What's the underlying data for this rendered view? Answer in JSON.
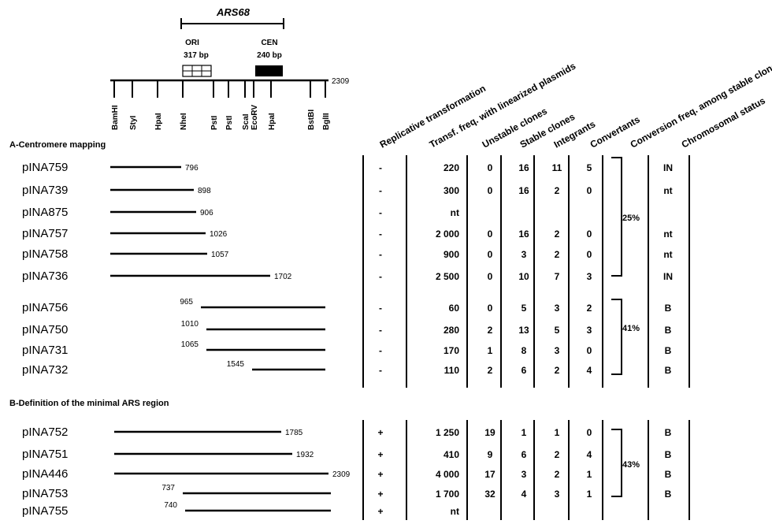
{
  "map": {
    "title": "ARS68",
    "ori_label": "ORI",
    "ori_size": "317  bp",
    "cen_label": "CEN",
    "cen_size": "240  bp",
    "end_coord": "2309",
    "sites": [
      "BamHI",
      "StyI",
      "HpaI",
      "NheI",
      "PstI",
      "PstI",
      "ScaI",
      "EcoRV",
      "HpaI",
      "BstBI",
      "BglII"
    ]
  },
  "columns": [
    "Replicative   transformation",
    "Transf. freq. with linearized plasmids",
    "Unstable  clones",
    "Stable  clones",
    "Integrants",
    "Convertants",
    "Conversion freq. among stable clones",
    "Chromosomal  status"
  ],
  "sections": {
    "a": "A-Centromere   mapping",
    "b": "B-Definition  of  the  minimal  ARS  region"
  },
  "rows": [
    {
      "name": "pINA759",
      "coord": "796",
      "rep": "-",
      "tf": "220",
      "uns": "0",
      "stab": "16",
      "integ": "11",
      "conv": "5",
      "chrom": "IN"
    },
    {
      "name": "pINA739",
      "coord": "898",
      "rep": "-",
      "tf": "300",
      "uns": "0",
      "stab": "16",
      "integ": "2",
      "conv": "0",
      "chrom": "nt"
    },
    {
      "name": "pINA875",
      "coord": "906",
      "rep": "-",
      "tf": "nt",
      "uns": "",
      "stab": "",
      "integ": "",
      "conv": "",
      "chrom": ""
    },
    {
      "name": "pINA757",
      "coord": "1026",
      "rep": "-",
      "tf": "2 000",
      "uns": "0",
      "stab": "16",
      "integ": "2",
      "conv": "0",
      "chrom": "nt"
    },
    {
      "name": "pINA758",
      "coord": "1057",
      "rep": "-",
      "tf": "900",
      "uns": "0",
      "stab": "3",
      "integ": "2",
      "conv": "0",
      "chrom": "nt"
    },
    {
      "name": "pINA736",
      "coord": "1702",
      "rep": "-",
      "tf": "2 500",
      "uns": "0",
      "stab": "10",
      "integ": "7",
      "conv": "3",
      "chrom": "IN"
    },
    {
      "name": "pINA756",
      "coord": "965",
      "rep": "-",
      "tf": "60",
      "uns": "0",
      "stab": "5",
      "integ": "3",
      "conv": "2",
      "chrom": "B"
    },
    {
      "name": "pINA750",
      "coord": "1010",
      "rep": "-",
      "tf": "280",
      "uns": "2",
      "stab": "13",
      "integ": "5",
      "conv": "3",
      "chrom": "B"
    },
    {
      "name": "pINA731",
      "coord": "1065",
      "rep": "-",
      "tf": "170",
      "uns": "1",
      "stab": "8",
      "integ": "3",
      "conv": "0",
      "chrom": "B"
    },
    {
      "name": "pINA732",
      "coord": "1545",
      "rep": "-",
      "tf": "110",
      "uns": "2",
      "stab": "6",
      "integ": "2",
      "conv": "4",
      "chrom": "B"
    },
    {
      "name": "pINA752",
      "coord": "1785",
      "rep": "+",
      "tf": "1 250",
      "uns": "19",
      "stab": "1",
      "integ": "1",
      "conv": "0",
      "chrom": "B"
    },
    {
      "name": "pINA751",
      "coord": "1932",
      "rep": "+",
      "tf": "410",
      "uns": "9",
      "stab": "6",
      "integ": "2",
      "conv": "4",
      "chrom": "B"
    },
    {
      "name": "pINA446",
      "coord": "2309",
      "rep": "+",
      "tf": "4 000",
      "uns": "17",
      "stab": "3",
      "integ": "2",
      "conv": "1",
      "chrom": "B"
    },
    {
      "name": "pINA753",
      "coord": "737",
      "rep": "+",
      "tf": "1 700",
      "uns": "32",
      "stab": "4",
      "integ": "3",
      "conv": "1",
      "chrom": "B"
    },
    {
      "name": "pINA755",
      "coord": "740",
      "rep": "+",
      "tf": "nt",
      "uns": "",
      "stab": "",
      "integ": "",
      "conv": "",
      "chrom": ""
    }
  ],
  "groups": [
    {
      "label": "25%"
    },
    {
      "label": "41%"
    },
    {
      "label": "43%"
    }
  ]
}
